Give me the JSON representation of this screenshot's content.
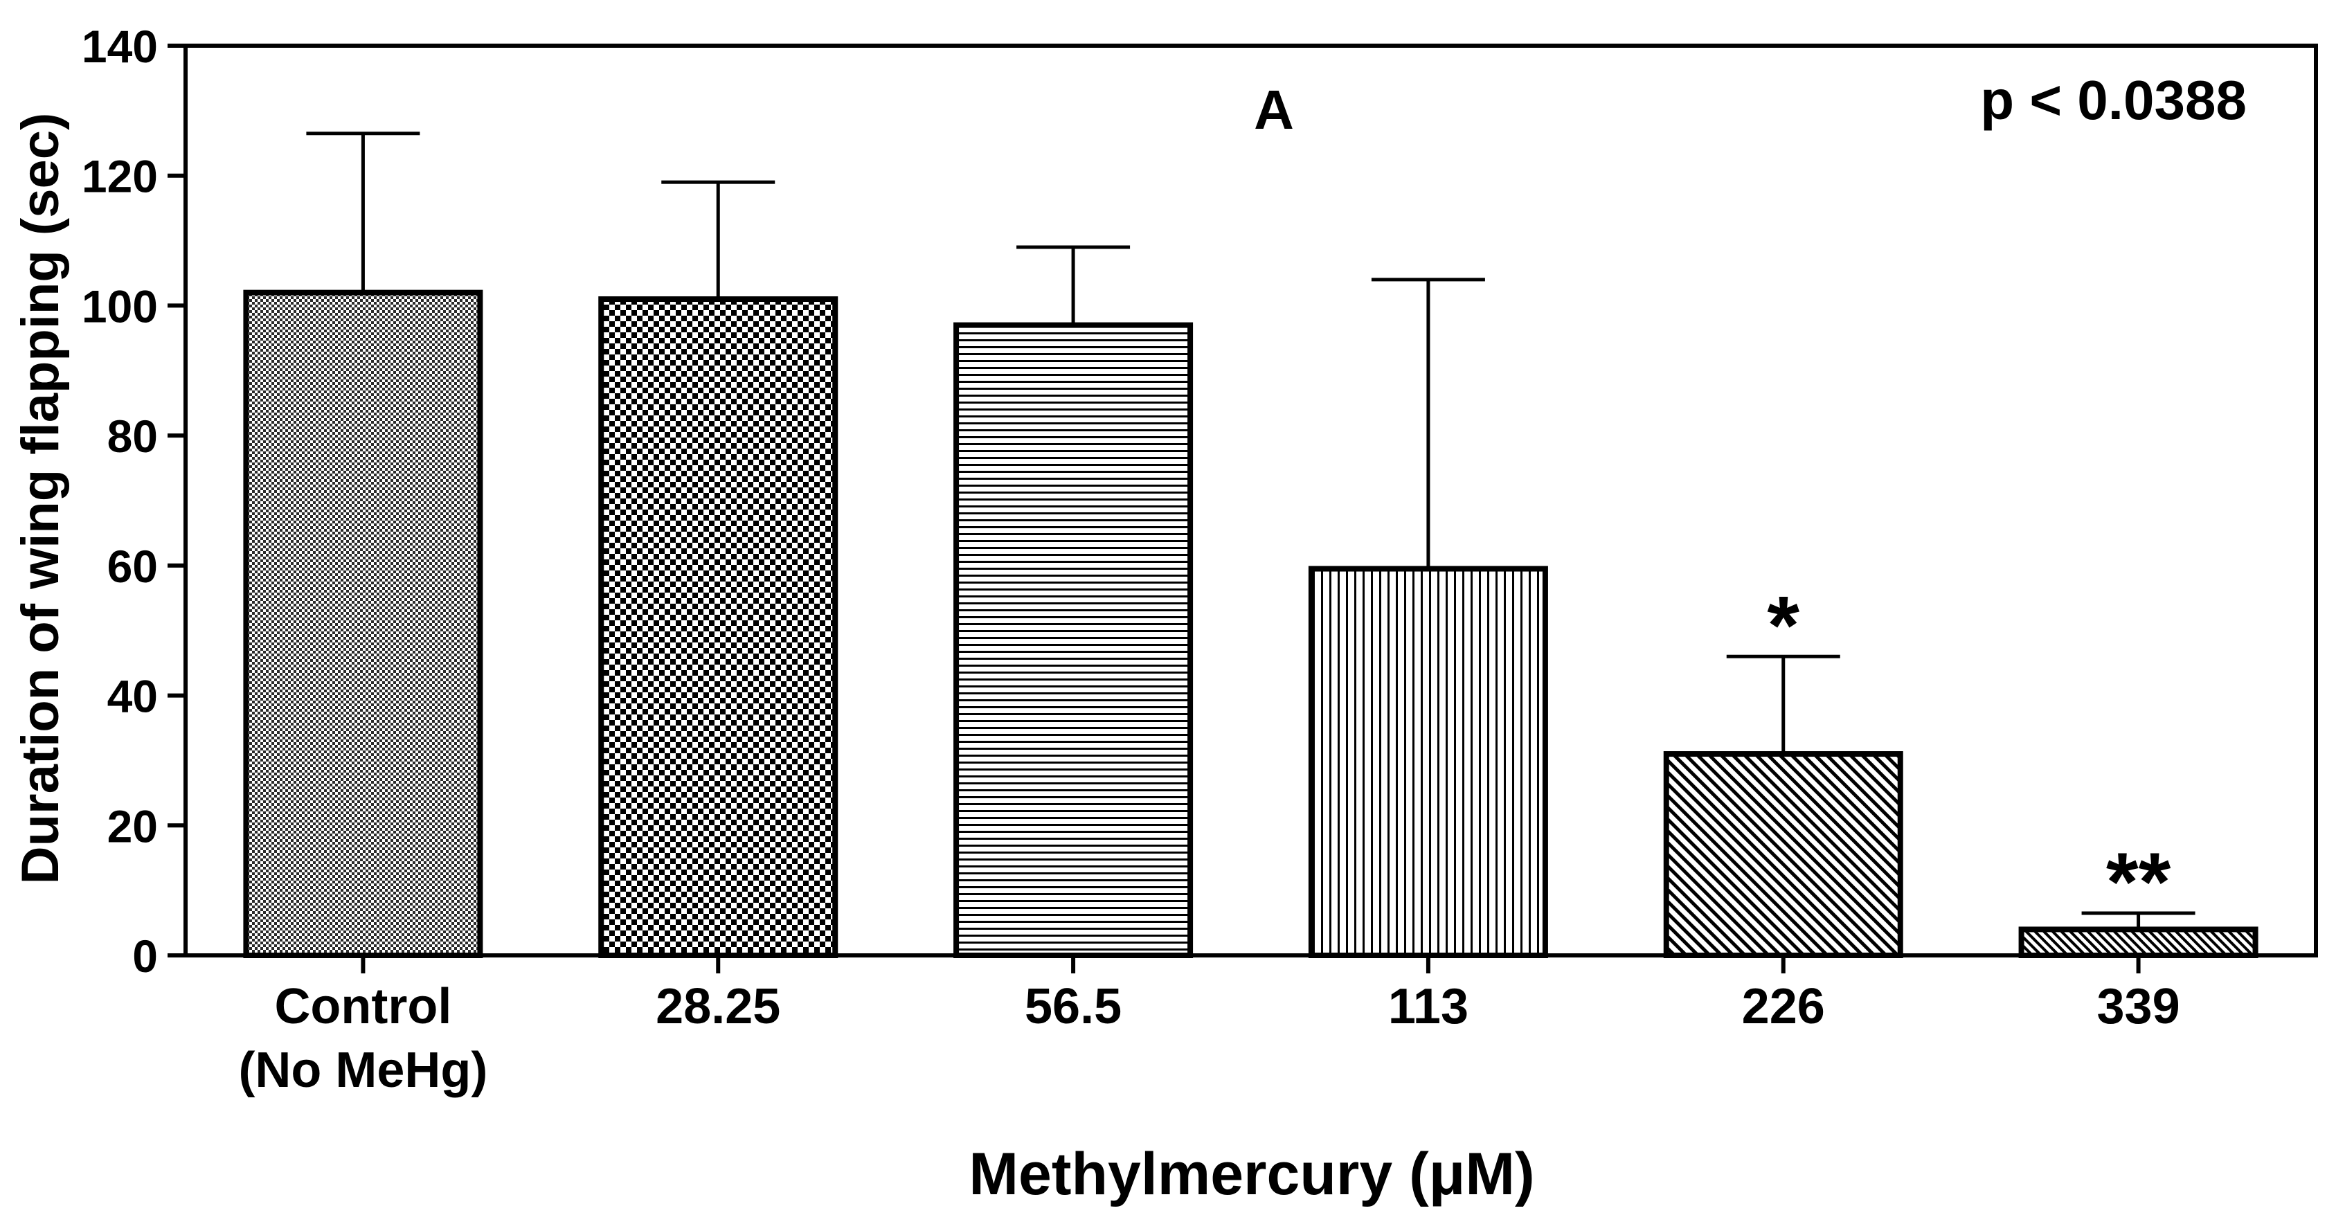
{
  "chart_data": {
    "type": "bar",
    "panel_label": "A",
    "annotation": "p < 0.0388",
    "xlabel": "Methylmercury (μM)",
    "ylabel": "Duration of wing flapping (sec)",
    "ylim": [
      0,
      140
    ],
    "yticks": [
      "0",
      "20",
      "40",
      "60",
      "80",
      "100",
      "120",
      "140"
    ],
    "grid": false,
    "categories": [
      {
        "line1": "Control",
        "line2": "(No MeHg)"
      },
      {
        "line1": "28.25",
        "line2": ""
      },
      {
        "line1": "56.5",
        "line2": ""
      },
      {
        "line1": "113",
        "line2": ""
      },
      {
        "line1": "226",
        "line2": ""
      },
      {
        "line1": "339",
        "line2": ""
      }
    ],
    "values": [
      102,
      101,
      97,
      59.5,
      31,
      4
    ],
    "error_upper": [
      126.5,
      119,
      109,
      104,
      46,
      6.5
    ],
    "significance": [
      "",
      "",
      "",
      "",
      "*",
      "**"
    ],
    "patterns": [
      "fine-check",
      "checkerboard",
      "horizontal-lines",
      "vertical-lines",
      "diagonal-dense",
      "diagonal-fine"
    ]
  }
}
